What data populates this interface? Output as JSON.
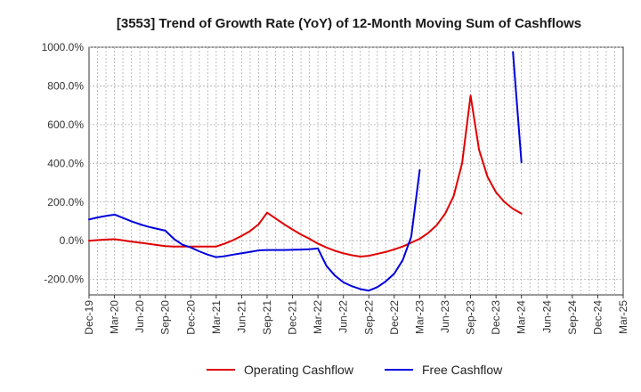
{
  "chart_data": {
    "type": "line",
    "title": "[3553]  Trend of Growth Rate (YoY) of 12-Month Moving Sum of Cashflows",
    "xlabel": "",
    "ylabel": "",
    "ylim": [
      -280,
      1000
    ],
    "y_ticks": [
      -200,
      0,
      200,
      400,
      600,
      800,
      1000
    ],
    "y_tick_labels": [
      "-200.0%",
      "0.0%",
      "200.0%",
      "400.0%",
      "600.0%",
      "800.0%",
      "1000.0%"
    ],
    "x_tick_labels": [
      "Dec-19",
      "Mar-20",
      "Jun-20",
      "Sep-20",
      "Dec-20",
      "Mar-21",
      "Jun-21",
      "Sep-21",
      "Dec-21",
      "Mar-22",
      "Jun-22",
      "Sep-22",
      "Dec-22",
      "Mar-23",
      "Jun-23",
      "Sep-23",
      "Dec-23",
      "Mar-24",
      "Jun-24",
      "Sep-24",
      "Dec-24",
      "Mar-25"
    ],
    "x": [
      "Dec-19",
      "Jan-20",
      "Feb-20",
      "Mar-20",
      "Apr-20",
      "May-20",
      "Jun-20",
      "Jul-20",
      "Aug-20",
      "Sep-20",
      "Oct-20",
      "Nov-20",
      "Dec-20",
      "Jan-21",
      "Feb-21",
      "Mar-21",
      "Apr-21",
      "May-21",
      "Jun-21",
      "Jul-21",
      "Aug-21",
      "Sep-21",
      "Oct-21",
      "Nov-21",
      "Dec-21",
      "Jan-22",
      "Feb-22",
      "Mar-22",
      "Apr-22",
      "May-22",
      "Jun-22",
      "Jul-22",
      "Aug-22",
      "Sep-22",
      "Oct-22",
      "Nov-22",
      "Dec-22",
      "Jan-23",
      "Feb-23",
      "Mar-23",
      "Apr-23",
      "May-23",
      "Jun-23",
      "Jul-23",
      "Aug-23",
      "Sep-23",
      "Oct-23",
      "Nov-23",
      "Dec-23",
      "Jan-24",
      "Feb-24",
      "Mar-24",
      "Apr-24",
      "May-24",
      "Jun-24",
      "Jul-24",
      "Aug-24",
      "Sep-24",
      "Oct-24",
      "Nov-24",
      "Dec-24",
      "Jan-25",
      "Feb-25",
      "Mar-25"
    ],
    "grid": true,
    "legend_position": "bottom",
    "series": [
      {
        "name": "Operating Cashflow",
        "color": "#e00000",
        "values": [
          0,
          3,
          6,
          8,
          2,
          -5,
          -10,
          -16,
          -22,
          -28,
          -30,
          -30,
          -30,
          -30,
          -30,
          -30,
          -15,
          3,
          25,
          50,
          85,
          145,
          115,
          85,
          58,
          32,
          10,
          -15,
          -35,
          -52,
          -65,
          -75,
          -82,
          -78,
          -68,
          -58,
          -45,
          -30,
          -10,
          10,
          40,
          80,
          140,
          230,
          400,
          750,
          470,
          330,
          250,
          200,
          165,
          140,
          null,
          null,
          null,
          null,
          null,
          null,
          null,
          null,
          null,
          null,
          null,
          null
        ]
      },
      {
        "name": "Free Cashflow",
        "color": "#0000dd",
        "values": [
          110,
          120,
          128,
          135,
          118,
          100,
          85,
          72,
          62,
          52,
          10,
          -20,
          -35,
          -55,
          -72,
          -85,
          -80,
          -72,
          -65,
          -58,
          -50,
          -48,
          -48,
          -48,
          -47,
          -46,
          -44,
          -40,
          -130,
          -180,
          -215,
          -235,
          -250,
          -258,
          -240,
          -210,
          -170,
          -100,
          20,
          365,
          null,
          null,
          null,
          null,
          null,
          null,
          null,
          null,
          null,
          null,
          975,
          405,
          null,
          null,
          null,
          null,
          null,
          null,
          null,
          null,
          null,
          null,
          null,
          null
        ]
      }
    ]
  }
}
